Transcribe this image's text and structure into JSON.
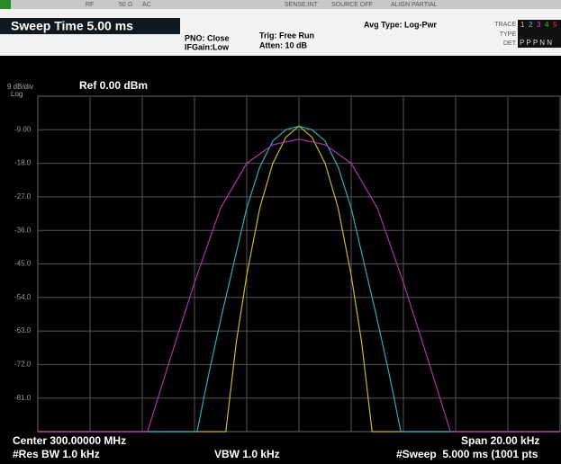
{
  "status_bar": {
    "rf": "RF",
    "impedance": "50 Ω",
    "coupling": "AC",
    "sense": "SENSE:INT",
    "source": "SOURCE OFF",
    "align": "ALIGN PARTIAL"
  },
  "header": {
    "sweep_time": "Sweep Time 5.00 ms",
    "pno": "PNO: Close",
    "ifgain": "IFGain:Low",
    "trig": "Trig: Free Run",
    "atten": "Atten: 10 dB",
    "avg_type": "Avg Type: Log-Pwr",
    "trace_label": "TRACE",
    "trace_numbers": [
      "1",
      "2",
      "3",
      "4",
      "5"
    ],
    "type_label": "TYPE",
    "det_label": "DET",
    "det_values": "P P P N N"
  },
  "chart_data": {
    "type": "line",
    "scale_label": "9 dB/div",
    "scale_type": "Log",
    "ref_level": "Ref 0.00 dBm",
    "xlim": [
      -10,
      10
    ],
    "ylim": [
      -90,
      0
    ],
    "yticks": [
      {
        "value": -9,
        "label": "-9.00"
      },
      {
        "value": -18,
        "label": "-18.0"
      },
      {
        "value": -27,
        "label": "-27.0"
      },
      {
        "value": -36,
        "label": "-36.0"
      },
      {
        "value": -45,
        "label": "-45.0"
      },
      {
        "value": -54,
        "label": "-54.0"
      },
      {
        "value": -63,
        "label": "-63.0"
      },
      {
        "value": -72,
        "label": "-72.0"
      },
      {
        "value": -81,
        "label": "-81.0"
      }
    ],
    "grid": true,
    "series": [
      {
        "color": "#c8b828",
        "x": [
          -10,
          -2.8,
          -2.4,
          -2,
          -1.5,
          -1,
          -0.5,
          0,
          0.5,
          1,
          1.5,
          2,
          2.4,
          2.8,
          10
        ],
        "values": [
          -90,
          -90,
          -66,
          -48,
          -30,
          -18,
          -11,
          -8,
          -11,
          -18,
          -30,
          -48,
          -66,
          -90,
          -90
        ]
      },
      {
        "color": "#28b0b8",
        "x": [
          -10,
          -3.9,
          -3.5,
          -3,
          -2.5,
          -2,
          -1.5,
          -1,
          -0.5,
          0,
          0.5,
          1,
          1.5,
          2,
          2.5,
          3,
          3.5,
          3.9,
          10
        ],
        "values": [
          -90,
          -90,
          -76,
          -60,
          -45,
          -30,
          -19,
          -12,
          -9,
          -8,
          -9,
          -12,
          -19,
          -30,
          -45,
          -60,
          -76,
          -90,
          -90
        ]
      },
      {
        "color": "#b030b0",
        "x": [
          -10,
          -5.8,
          -5,
          -4,
          -3,
          -2,
          -1,
          0,
          1,
          2,
          3,
          4,
          5,
          5.8,
          10
        ],
        "values": [
          -90,
          -90,
          -72,
          -50,
          -30,
          -18,
          -13,
          -11.5,
          -13,
          -18,
          -30,
          -50,
          -72,
          -90,
          -90
        ]
      }
    ]
  },
  "footer": {
    "center": "Center 300.00000 MHz",
    "span": "Span 20.00 kHz",
    "rbw": "#Res BW 1.0 kHz",
    "vbw": "VBW 1.0 kHz",
    "sweep": "#Sweep  5.000 ms (1001 pts"
  }
}
